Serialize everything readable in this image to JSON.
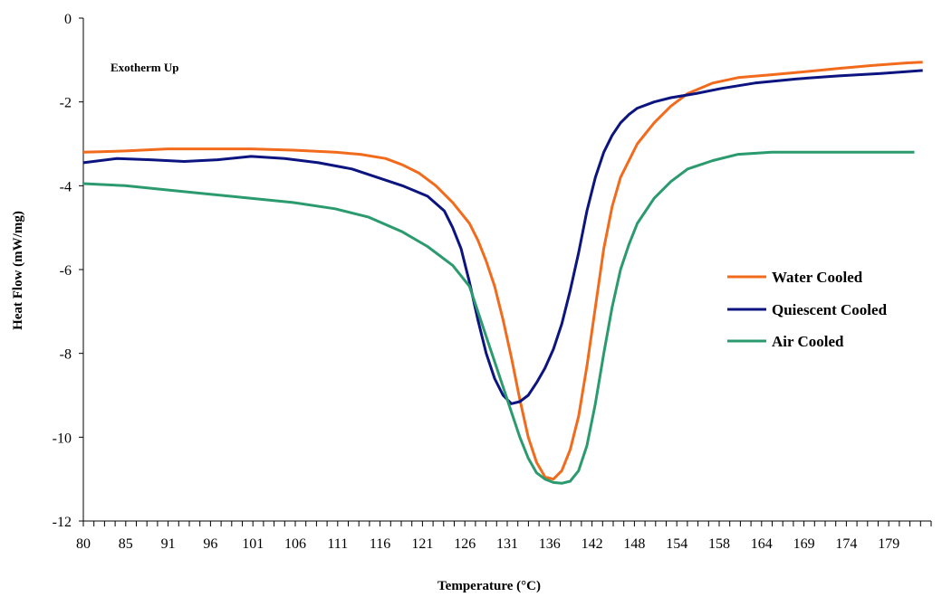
{
  "chart_data": {
    "type": "line",
    "title": "",
    "xlabel": "Temperature (°C)",
    "ylabel": "Heat Flow (mW/mg)",
    "annotation": "Exotherm Up",
    "xlim": [
      80,
      181
    ],
    "ylim": [
      -12,
      0
    ],
    "x_tick_labels": [
      "80",
      "85",
      "91",
      "96",
      "101",
      "106",
      "111",
      "116",
      "121",
      "126",
      "131",
      "136",
      "142",
      "148",
      "154",
      "158",
      "164",
      "169",
      "174",
      "179"
    ],
    "y_ticks": [
      0,
      -2,
      -4,
      -6,
      -8,
      -10,
      -12
    ],
    "grid": false,
    "legend_position": "right",
    "series": [
      {
        "name": "Water Cooled",
        "color": "#f26b1d",
        "x": [
          80,
          85,
          90,
          95,
          100,
          105,
          110,
          113,
          116,
          118,
          120,
          122,
          124,
          126,
          127,
          128,
          129,
          130,
          131,
          132,
          133,
          134,
          135,
          136,
          137,
          138,
          139,
          140,
          141,
          142,
          143,
          144,
          146,
          148,
          150,
          152,
          155,
          158,
          162,
          166,
          170,
          174,
          178,
          180
        ],
        "y": [
          -3.2,
          -3.17,
          -3.12,
          -3.12,
          -3.12,
          -3.15,
          -3.2,
          -3.25,
          -3.35,
          -3.5,
          -3.7,
          -4.0,
          -4.4,
          -4.9,
          -5.3,
          -5.8,
          -6.4,
          -7.2,
          -8.1,
          -9.1,
          -10.0,
          -10.6,
          -10.95,
          -11.0,
          -10.8,
          -10.3,
          -9.5,
          -8.3,
          -6.9,
          -5.5,
          -4.5,
          -3.8,
          -3.0,
          -2.5,
          -2.1,
          -1.8,
          -1.55,
          -1.42,
          -1.35,
          -1.28,
          -1.2,
          -1.13,
          -1.07,
          -1.05
        ]
      },
      {
        "name": "Quiescent Cooled",
        "color": "#0c1480",
        "x": [
          80,
          84,
          88,
          92,
          96,
          100,
          104,
          108,
          112,
          115,
          118,
          121,
          123,
          124,
          125,
          126,
          127,
          128,
          129,
          130,
          131,
          132,
          133,
          134,
          135,
          136,
          137,
          138,
          139,
          140,
          141,
          142,
          143,
          144,
          145,
          146,
          148,
          150,
          153,
          156,
          160,
          165,
          170,
          175,
          178,
          180
        ],
        "y": [
          -3.45,
          -3.35,
          -3.38,
          -3.42,
          -3.38,
          -3.3,
          -3.35,
          -3.45,
          -3.6,
          -3.8,
          -4.0,
          -4.25,
          -4.6,
          -5.0,
          -5.5,
          -6.3,
          -7.2,
          -8.0,
          -8.6,
          -9.0,
          -9.2,
          -9.15,
          -9.0,
          -8.7,
          -8.35,
          -7.9,
          -7.3,
          -6.5,
          -5.6,
          -4.6,
          -3.8,
          -3.2,
          -2.8,
          -2.5,
          -2.3,
          -2.15,
          -2.0,
          -1.9,
          -1.8,
          -1.68,
          -1.55,
          -1.45,
          -1.38,
          -1.32,
          -1.28,
          -1.25
        ]
      },
      {
        "name": "Air Cooled",
        "color": "#2b9b6f",
        "x": [
          80,
          85,
          90,
          95,
          100,
          105,
          110,
          114,
          118,
          121,
          124,
          126,
          127,
          128,
          129,
          130,
          131,
          132,
          133,
          134,
          135,
          136,
          137,
          138,
          139,
          140,
          141,
          142,
          143,
          144,
          145,
          146,
          148,
          150,
          152,
          155,
          158,
          162,
          168,
          174,
          178,
          179
        ],
        "y": [
          -3.95,
          -4.0,
          -4.1,
          -4.2,
          -4.3,
          -4.4,
          -4.55,
          -4.75,
          -5.1,
          -5.45,
          -5.9,
          -6.4,
          -7.0,
          -7.6,
          -8.2,
          -8.8,
          -9.4,
          -10.0,
          -10.5,
          -10.85,
          -11.0,
          -11.08,
          -11.1,
          -11.05,
          -10.8,
          -10.2,
          -9.2,
          -8.0,
          -6.9,
          -6.0,
          -5.4,
          -4.9,
          -4.3,
          -3.9,
          -3.6,
          -3.4,
          -3.25,
          -3.2,
          -3.2,
          -3.2,
          -3.2,
          -3.2
        ]
      }
    ]
  }
}
